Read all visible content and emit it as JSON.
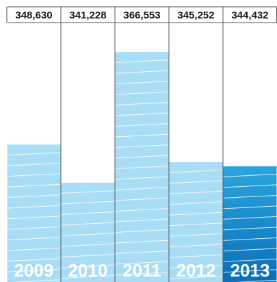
{
  "chart_data": {
    "type": "bar",
    "categories": [
      "2009",
      "2010",
      "2011",
      "2012",
      "2013"
    ],
    "values": [
      348630,
      341228,
      366553,
      345252,
      344432
    ],
    "value_labels": [
      "348,630",
      "341,228",
      "366,553",
      "345,252",
      "344,432"
    ],
    "ylim": [
      322000,
      372000
    ],
    "title": "",
    "xlabel": "",
    "ylabel": "",
    "highlight_index": 4,
    "grid": false
  },
  "colors": {
    "bar_fill": "#a9ddf6",
    "highlight_top": "#2aa6dd",
    "highlight_bottom": "#0a6fb8",
    "stripe": "#ffffff",
    "divider": "#555555",
    "label_text": "#1a1a1a",
    "year_text": "#ffffff"
  }
}
